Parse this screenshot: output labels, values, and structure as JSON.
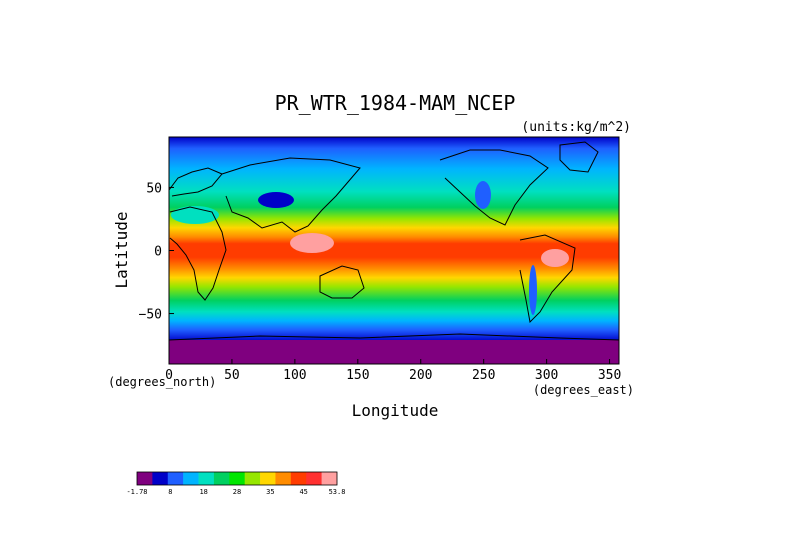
{
  "chart_data": {
    "type": "heatmap",
    "title": "PR_WTR_1984-MAM_NCEP",
    "units_note": "(units:kg/m^2)",
    "xlabel": "Longitude",
    "ylabel": "Latitude",
    "x_units": "(degrees_east)",
    "y_units": "(degrees_north)",
    "xlim": [
      0,
      357.5
    ],
    "ylim": [
      -90,
      90
    ],
    "xticks": [
      "0",
      "50",
      "100",
      "150",
      "200",
      "250",
      "300",
      "350"
    ],
    "xtick_values": [
      0,
      50,
      100,
      150,
      200,
      250,
      300,
      350
    ],
    "yticks": [
      "50",
      "0",
      "−50"
    ],
    "ytick_values": [
      50,
      0,
      -50
    ],
    "grid": false,
    "colorbar": {
      "orientation": "horizontal",
      "min": -1.78,
      "max": 53.8,
      "tick_labels": [
        "-1.78",
        "8",
        "18",
        "28",
        "35",
        "45",
        "53.8"
      ],
      "colors": [
        "#7f007f",
        "#0000c8",
        "#1f5fff",
        "#00b4ff",
        "#00e0c0",
        "#00d060",
        "#00e600",
        "#96e600",
        "#ffd700",
        "#ff8c00",
        "#ff3c00",
        "#ff3030",
        "#ffa0a0"
      ]
    },
    "zonal_mean_by_latitude": [
      {
        "lat": 90,
        "value": 4
      },
      {
        "lat": 75,
        "value": 6
      },
      {
        "lat": 60,
        "value": 10
      },
      {
        "lat": 45,
        "value": 15
      },
      {
        "lat": 30,
        "value": 22
      },
      {
        "lat": 15,
        "value": 35
      },
      {
        "lat": 0,
        "value": 45
      },
      {
        "lat": -15,
        "value": 35
      },
      {
        "lat": -30,
        "value": 22
      },
      {
        "lat": -45,
        "value": 14
      },
      {
        "lat": -60,
        "value": 8
      },
      {
        "lat": -75,
        "value": 3
      },
      {
        "lat": -90,
        "value": 1
      }
    ]
  }
}
